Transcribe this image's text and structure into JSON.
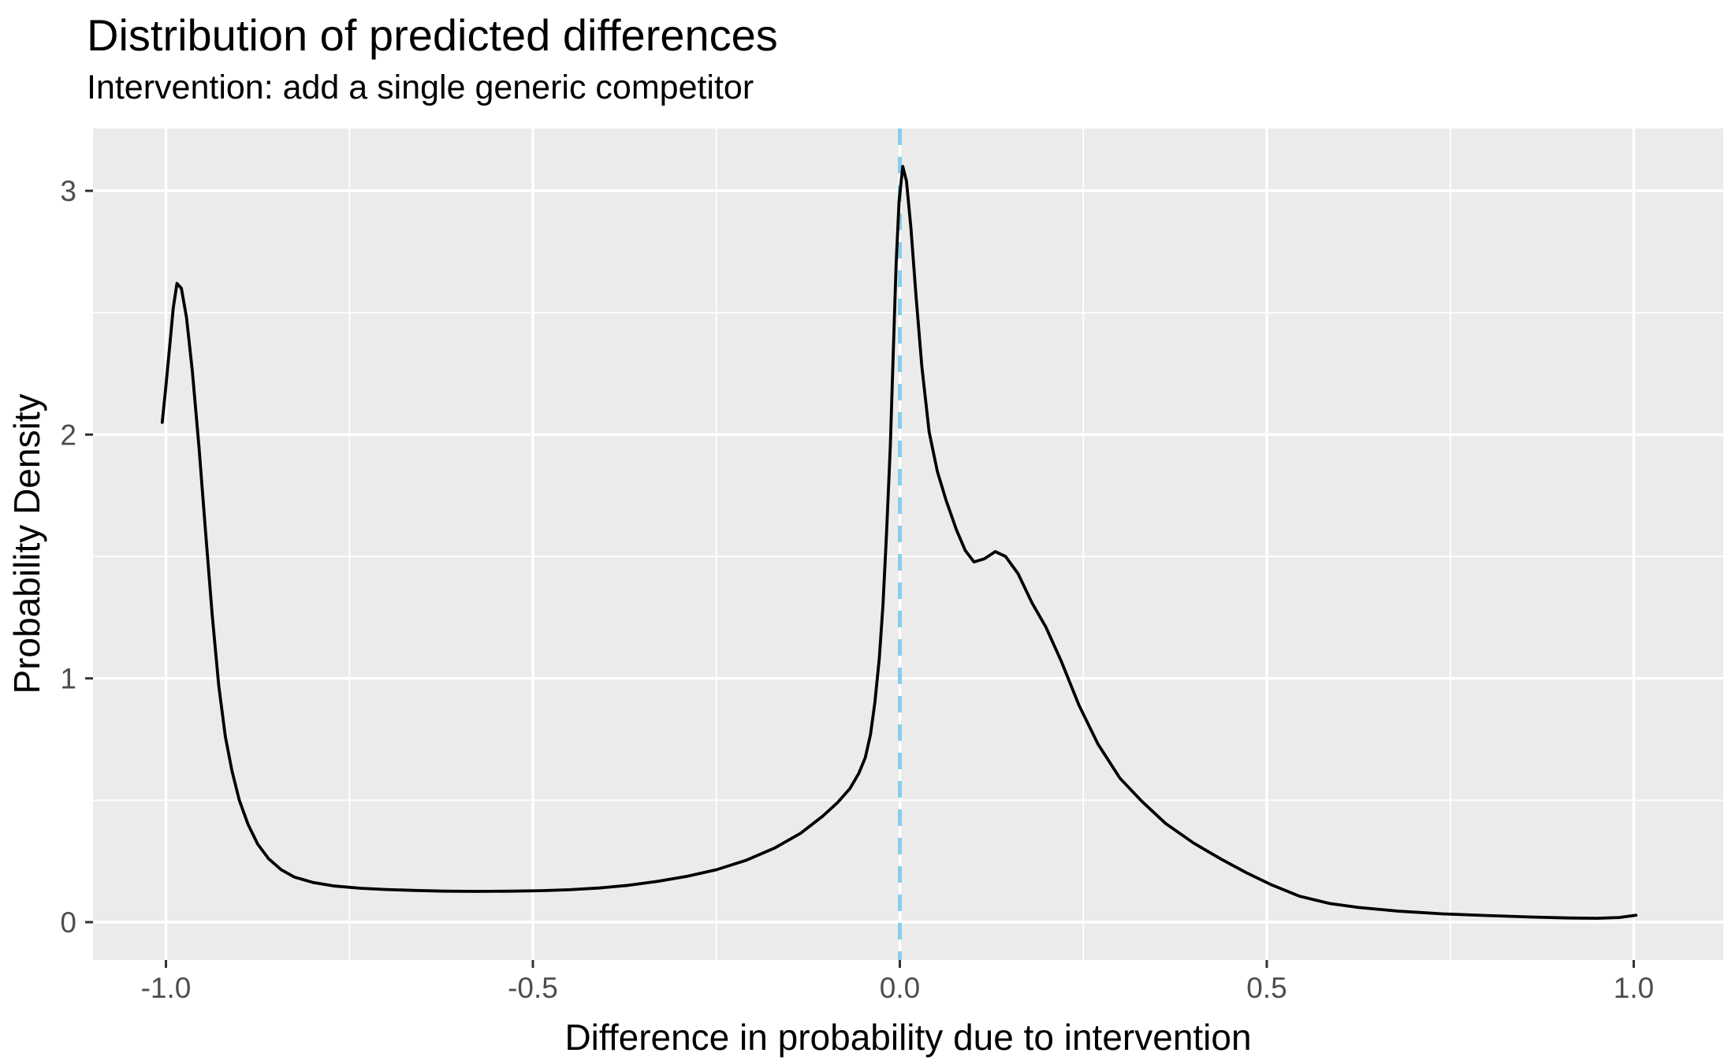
{
  "title": "Distribution of predicted differences",
  "subtitle": "Intervention: add a single generic competitor",
  "colors": {
    "page_bg": "#FFFFFF",
    "panel_bg": "#EBEBEB",
    "grid": "#FFFFFF",
    "curve": "#000000",
    "vline": "#87CEEB",
    "tick_mark": "#333333",
    "tick_label": "#4D4D4D",
    "title_text": "#000000",
    "axis_title_text": "#000000"
  },
  "chart_data": {
    "type": "line",
    "title": "Distribution of predicted differences",
    "subtitle": "Intervention: add a single generic competitor",
    "xlabel": "Difference in probability due to intervention",
    "ylabel": "Probability Density",
    "xlim": [
      -1.1,
      1.12
    ],
    "ylim": [
      -0.155,
      3.255
    ],
    "grid": true,
    "legend_position": "none",
    "x_axis": {
      "tick_values": [
        -1.0,
        -0.5,
        0.0,
        0.5,
        1.0
      ],
      "tick_labels": [
        "-1.0",
        "-0.5",
        "0.0",
        "0.5",
        "1.0"
      ],
      "minor_tick_values": [
        -0.75,
        -0.25,
        0.25,
        0.75
      ]
    },
    "y_axis": {
      "tick_values": [
        0,
        1,
        2,
        3
      ],
      "tick_labels": [
        "0",
        "1",
        "2",
        "3"
      ],
      "minor_tick_values": [
        0.5,
        1.5,
        2.5
      ]
    },
    "reference_line": {
      "x": 0.0,
      "style": "dashed",
      "color": "#87CEEB"
    },
    "series": [
      {
        "name": "predicted-difference-density",
        "points": [
          [
            -1.005,
            2.05
          ],
          [
            -1.0,
            2.2
          ],
          [
            -0.995,
            2.36
          ],
          [
            -0.99,
            2.52
          ],
          [
            -0.985,
            2.62
          ],
          [
            -0.979,
            2.6
          ],
          [
            -0.972,
            2.48
          ],
          [
            -0.964,
            2.26
          ],
          [
            -0.955,
            1.95
          ],
          [
            -0.946,
            1.6
          ],
          [
            -0.937,
            1.26
          ],
          [
            -0.928,
            0.97
          ],
          [
            -0.919,
            0.76
          ],
          [
            -0.91,
            0.62
          ],
          [
            -0.9,
            0.5
          ],
          [
            -0.888,
            0.4
          ],
          [
            -0.875,
            0.32
          ],
          [
            -0.86,
            0.26
          ],
          [
            -0.843,
            0.215
          ],
          [
            -0.825,
            0.185
          ],
          [
            -0.8,
            0.163
          ],
          [
            -0.77,
            0.148
          ],
          [
            -0.735,
            0.139
          ],
          [
            -0.7,
            0.134
          ],
          [
            -0.66,
            0.13
          ],
          [
            -0.62,
            0.127
          ],
          [
            -0.575,
            0.126
          ],
          [
            -0.53,
            0.127
          ],
          [
            -0.49,
            0.129
          ],
          [
            -0.45,
            0.133
          ],
          [
            -0.41,
            0.14
          ],
          [
            -0.37,
            0.151
          ],
          [
            -0.33,
            0.167
          ],
          [
            -0.29,
            0.188
          ],
          [
            -0.25,
            0.215
          ],
          [
            -0.21,
            0.253
          ],
          [
            -0.17,
            0.305
          ],
          [
            -0.135,
            0.365
          ],
          [
            -0.105,
            0.435
          ],
          [
            -0.085,
            0.49
          ],
          [
            -0.068,
            0.548
          ],
          [
            -0.056,
            0.61
          ],
          [
            -0.047,
            0.675
          ],
          [
            -0.04,
            0.77
          ],
          [
            -0.034,
            0.9
          ],
          [
            -0.028,
            1.08
          ],
          [
            -0.023,
            1.3
          ],
          [
            -0.018,
            1.6
          ],
          [
            -0.013,
            1.95
          ],
          [
            -0.009,
            2.33
          ],
          [
            -0.005,
            2.7
          ],
          [
            -0.001,
            2.96
          ],
          [
            0.004,
            3.1
          ],
          [
            0.009,
            3.04
          ],
          [
            0.015,
            2.85
          ],
          [
            0.022,
            2.57
          ],
          [
            0.03,
            2.28
          ],
          [
            0.04,
            2.01
          ],
          [
            0.051,
            1.85
          ],
          [
            0.063,
            1.73
          ],
          [
            0.077,
            1.61
          ],
          [
            0.089,
            1.525
          ],
          [
            0.101,
            1.478
          ],
          [
            0.115,
            1.49
          ],
          [
            0.13,
            1.52
          ],
          [
            0.144,
            1.5
          ],
          [
            0.161,
            1.43
          ],
          [
            0.18,
            1.31
          ],
          [
            0.199,
            1.21
          ],
          [
            0.22,
            1.07
          ],
          [
            0.244,
            0.89
          ],
          [
            0.27,
            0.73
          ],
          [
            0.3,
            0.59
          ],
          [
            0.33,
            0.495
          ],
          [
            0.362,
            0.405
          ],
          [
            0.4,
            0.325
          ],
          [
            0.438,
            0.258
          ],
          [
            0.472,
            0.203
          ],
          [
            0.505,
            0.155
          ],
          [
            0.545,
            0.106
          ],
          [
            0.585,
            0.077
          ],
          [
            0.625,
            0.06
          ],
          [
            0.68,
            0.045
          ],
          [
            0.74,
            0.034
          ],
          [
            0.8,
            0.027
          ],
          [
            0.86,
            0.021
          ],
          [
            0.91,
            0.017
          ],
          [
            0.95,
            0.016
          ],
          [
            0.98,
            0.019
          ],
          [
            1.003,
            0.028
          ]
        ]
      }
    ]
  }
}
